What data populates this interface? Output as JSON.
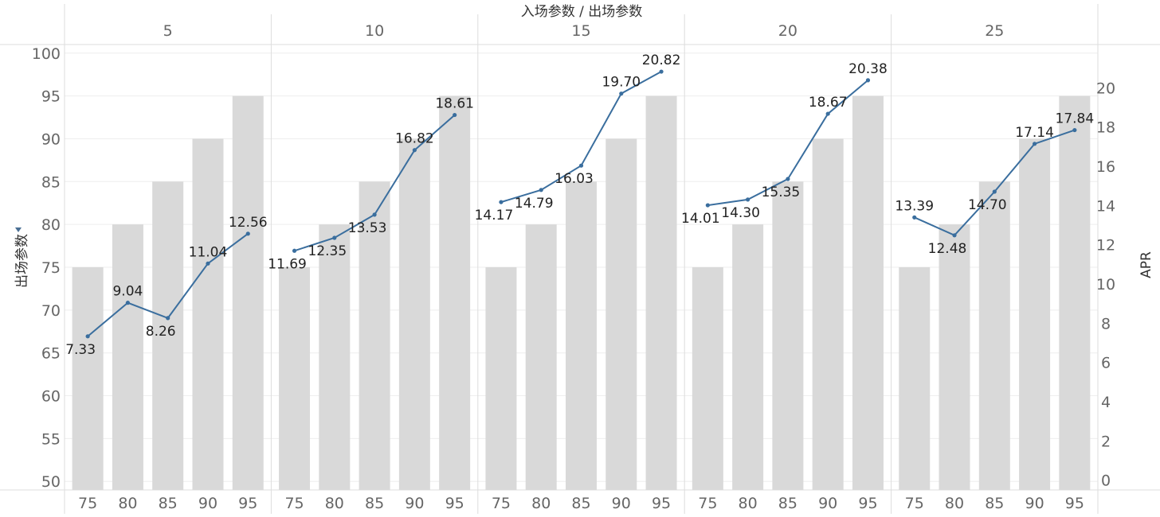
{
  "chart_data": {
    "type": "bar",
    "title": "入场参数 / 出场参数",
    "left_axis_title": "出场参数",
    "right_axis_title": "APR",
    "panels": [
      "5",
      "10",
      "15",
      "20",
      "25"
    ],
    "categories": [
      "75",
      "80",
      "85",
      "90",
      "95"
    ],
    "bar_series": {
      "name": "出场参数",
      "values": [
        [
          75,
          80,
          85,
          90,
          95
        ],
        [
          75,
          80,
          85,
          90,
          95
        ],
        [
          75,
          80,
          85,
          90,
          95
        ],
        [
          75,
          80,
          85,
          90,
          95
        ],
        [
          75,
          80,
          85,
          90,
          95
        ]
      ]
    },
    "line_series": {
      "name": "APR",
      "values": [
        [
          7.33,
          9.04,
          8.26,
          11.04,
          12.56
        ],
        [
          11.69,
          12.35,
          13.53,
          16.82,
          18.61
        ],
        [
          14.17,
          14.79,
          16.03,
          19.7,
          20.82
        ],
        [
          14.01,
          14.3,
          15.35,
          18.67,
          20.38
        ],
        [
          13.39,
          12.48,
          14.7,
          17.14,
          17.84
        ]
      ],
      "labels": [
        [
          "7.33",
          "9.04",
          "8.26",
          "11.04",
          "12.56"
        ],
        [
          "11.69",
          "12.35",
          "13.53",
          "16.82",
          "18.61"
        ],
        [
          "14.17",
          "14.79",
          "16.03",
          "19.70",
          "20.82"
        ],
        [
          "14.01",
          "14.30",
          "15.35",
          "18.67",
          "20.38"
        ],
        [
          "13.39",
          "12.48",
          "14.70",
          "17.14",
          "17.84"
        ]
      ],
      "label_side": [
        [
          "below",
          "above",
          "below",
          "above",
          "above"
        ],
        [
          "below",
          "below",
          "below",
          "above",
          "above"
        ],
        [
          "below",
          "below",
          "below",
          "above",
          "above"
        ],
        [
          "below",
          "below",
          "below",
          "above",
          "above"
        ],
        [
          "above",
          "below",
          "below",
          "above",
          "above"
        ]
      ]
    },
    "left_axis": {
      "ylim": [
        49,
        101
      ],
      "ticks": [
        "50",
        "55",
        "60",
        "65",
        "70",
        "75",
        "80",
        "85",
        "90",
        "95",
        "100"
      ]
    },
    "right_axis": {
      "ylim": [
        -0.5,
        22.2
      ],
      "ticks": [
        "0",
        "2",
        "4",
        "6",
        "8",
        "10",
        "12",
        "14",
        "16",
        "18",
        "20"
      ]
    },
    "grid": true,
    "colors": {
      "bar": "#d9d9d9",
      "line": "#3a6e9e",
      "grid": "#eeeeee",
      "divider": "#dddddd"
    }
  }
}
